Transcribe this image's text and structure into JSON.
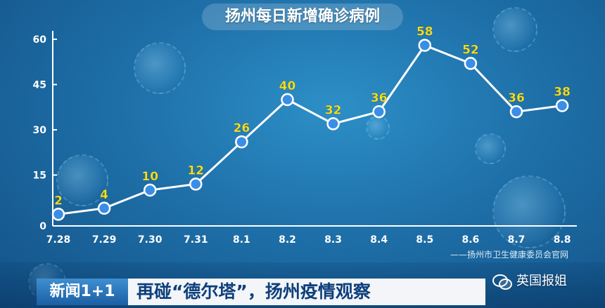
{
  "chart_data": {
    "type": "line",
    "title": "扬州每日新增确诊病例",
    "categories": [
      "7.28",
      "7.29",
      "7.30",
      "7.31",
      "8.1",
      "8.2",
      "8.3",
      "8.4",
      "8.5",
      "8.6",
      "8.7",
      "8.8"
    ],
    "values": [
      2,
      4,
      10,
      12,
      26,
      40,
      32,
      36,
      58,
      52,
      36,
      38
    ],
    "yticks": [
      0,
      15,
      30,
      45,
      60
    ],
    "ylim": [
      0,
      60
    ],
    "grid": false,
    "source": "——扬州市卫生健康委员会官网",
    "colors": {
      "line": "#ffffff",
      "marker": "#3a8ee6",
      "data_label": "#ffe11a",
      "axis": "#ffffff"
    }
  },
  "lower_third": {
    "program": "新闻1+1",
    "headline": "再碰“德尔塔”，扬州疫情观察"
  },
  "watermark": {
    "icon": "wechat-icon",
    "text": "英国报姐"
  }
}
